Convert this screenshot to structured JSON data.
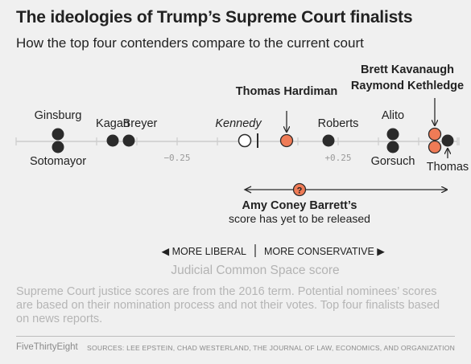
{
  "title": "The ideologies of Trump’s Supreme Court finalists",
  "subtitle": "How the top four contenders compare to the current court",
  "footnote": "Supreme Court justice scores are from the 2016 term. Potential nominees’ scores are based on their nomination process and not their votes. Top four finalists based on news reports.",
  "brand": "FiveThirtyEight",
  "sources": "SOURCES: LEE EPSTEIN, CHAD WESTERLAND, THE JOURNAL OF LAW, ECONOMICS, AND ORGANIZATION",
  "colors": {
    "justice": "#2b2b2b",
    "nominee": "#ef7b56",
    "swing_outline": "#2b2b2b",
    "axis": "#cccccc",
    "footnote": "#b5b5b5"
  },
  "chart_data": {
    "type": "scatter",
    "title": "The ideologies of Trump’s Supreme Court finalists",
    "subtitle": "How the top four contenders compare to the current court",
    "xlabel": "Judicial Common Space score",
    "direction_left": "◀ MORE LIBERAL",
    "direction_right": "MORE CONSERVATIVE ▶",
    "xlim": [
      -0.75,
      0.62
    ],
    "tick_labels": [
      {
        "value": -0.25,
        "label": "−0.25"
      },
      {
        "value": 0.25,
        "label": "+0.25"
      }
    ],
    "median_marker": 0.0,
    "points": [
      {
        "name": "Ginsburg",
        "x": -0.62,
        "group": "justice"
      },
      {
        "name": "Sotomayor",
        "x": -0.62,
        "group": "justice"
      },
      {
        "name": "Kagan",
        "x": -0.45,
        "group": "justice"
      },
      {
        "name": "Breyer",
        "x": -0.4,
        "group": "justice"
      },
      {
        "name": "Kennedy",
        "x": -0.04,
        "group": "swing"
      },
      {
        "name": "Thomas Hardiman",
        "x": 0.09,
        "group": "nominee"
      },
      {
        "name": "Roberts",
        "x": 0.22,
        "group": "justice"
      },
      {
        "name": "Alito",
        "x": 0.42,
        "group": "justice"
      },
      {
        "name": "Gorsuch",
        "x": 0.42,
        "group": "justice"
      },
      {
        "name": "Brett Kavanaugh",
        "x": 0.55,
        "group": "nominee"
      },
      {
        "name": "Raymond Kethledge",
        "x": 0.55,
        "group": "nominee"
      },
      {
        "name": "Thomas",
        "x": 0.59,
        "group": "justice"
      }
    ],
    "unknown": {
      "name": "Amy Coney Barrett’s",
      "note": "score has yet to be released",
      "marker": "?",
      "x": 0.13,
      "range": [
        -0.04,
        0.59
      ]
    }
  }
}
